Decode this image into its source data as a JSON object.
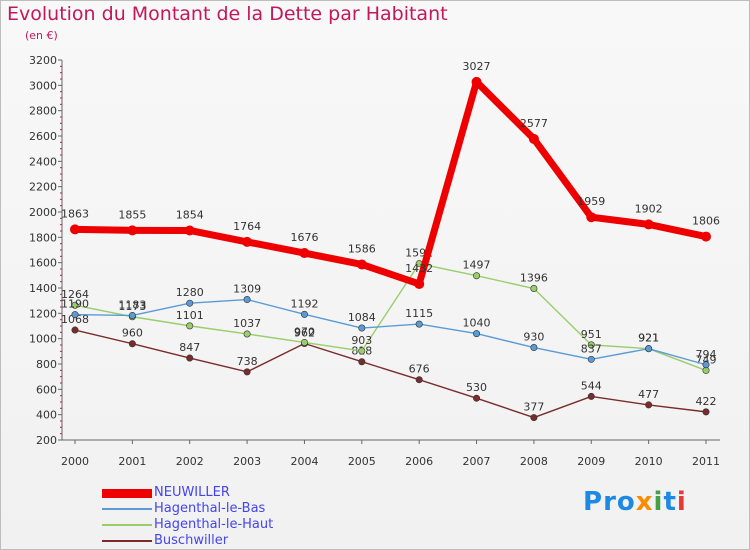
{
  "title": "Evolution du Montant de la Dette par Habitant",
  "subtitle": "(en €)",
  "logo": {
    "letters": [
      "P",
      "r",
      "o",
      "x",
      "i",
      "t",
      "i"
    ],
    "colors": [
      "#1e88e5",
      "#1e88e5",
      "#1e88e5",
      "#fb8c00",
      "#43a047",
      "#1e88e5",
      "#e53935"
    ]
  },
  "chart_data": {
    "type": "line",
    "x": [
      "2000",
      "2001",
      "2002",
      "2003",
      "2004",
      "2005",
      "2006",
      "2007",
      "2008",
      "2009",
      "2010",
      "2011"
    ],
    "ylim": [
      200,
      3200
    ],
    "yticks": [
      200,
      400,
      600,
      800,
      1000,
      1200,
      1400,
      1600,
      1800,
      2000,
      2200,
      2400,
      2600,
      2800,
      3000,
      3200
    ],
    "grid": false,
    "legend_position": "bottom-left",
    "series": [
      {
        "name": "NEUWILLER",
        "color": "#ee0000",
        "values": [
          1863,
          1855,
          1854,
          1764,
          1676,
          1586,
          1432,
          3027,
          2577,
          1959,
          1902,
          1806
        ]
      },
      {
        "name": "Hagenthal-le-Bas",
        "color": "#5b9bd5",
        "values": [
          1190,
          1183,
          1280,
          1309,
          1192,
          1084,
          1115,
          1040,
          930,
          837,
          921,
          794
        ]
      },
      {
        "name": "Hagenthal-le-Haut",
        "color": "#9acd6b",
        "values": [
          1264,
          1173,
          1101,
          1037,
          970,
          903,
          1592,
          1497,
          1396,
          951,
          921,
          749
        ]
      },
      {
        "name": "Buschwiller",
        "color": "#7a2c2c",
        "values": [
          1068,
          960,
          847,
          738,
          962,
          818,
          676,
          530,
          377,
          544,
          477,
          422
        ]
      }
    ]
  }
}
